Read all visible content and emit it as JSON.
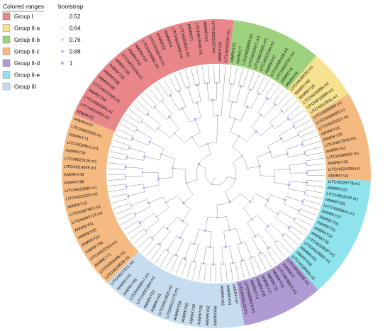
{
  "legend": {
    "colored_title": "Colored ranges",
    "bootstrap_title": "bootstrap",
    "groups": [
      {
        "name": "Group I",
        "color": "#e8868a"
      },
      {
        "name": "Group II-a",
        "color": "#f7e38f"
      },
      {
        "name": "Group II-b",
        "color": "#9fd27e"
      },
      {
        "name": "Group II-c",
        "color": "#f5ba82"
      },
      {
        "name": "Group II-d",
        "color": "#b09ad3"
      },
      {
        "name": "Group II-e",
        "color": "#8fe3ec"
      },
      {
        "name": "Group III",
        "color": "#c6dcef"
      }
    ],
    "bootstrap": [
      "0.52",
      "0.64",
      "0.76",
      "0.88",
      "1"
    ]
  },
  "colors": {
    "branch": "#8a8a8a",
    "node": "#b7b4ec"
  },
  "sectors": [
    {
      "group": "Group I",
      "start": 74,
      "end": 178
    },
    {
      "group": "Group II-a",
      "start": 38,
      "end": 74
    },
    {
      "group": "Group II-b",
      "start": 0,
      "end": 38
    },
    {
      "group": "Group II-c",
      "start": -51,
      "end": 0
    },
    {
      "group": "Group II-c",
      "start": 106,
      "end": 178
    },
    {
      "group": "Group II-e",
      "start": -120,
      "end": -51
    },
    {
      "group": "Group II-d",
      "start": -155,
      "end": -120
    },
    {
      "group": "Group III",
      "start": 165,
      "end": 205
    },
    {
      "group": "Group III",
      "start": -155,
      "end": -165
    }
  ],
  "leaves": [
    {
      "label": "AtWRKY72",
      "group": "Group II-b"
    },
    {
      "label": "AtWRKY7",
      "group": "Group II-b"
    },
    {
      "label": "LITCHI028863.m1",
      "group": "Group II-b"
    },
    {
      "label": "LITCHI019971.m1",
      "group": "Group II-b"
    },
    {
      "label": "LITCHI023601.m1",
      "group": "Group II-b"
    },
    {
      "label": "LITCHI012184.m1",
      "group": "Group II-b"
    },
    {
      "label": "AtWRKY47",
      "group": "Group II-b"
    },
    {
      "label": "LITCHI005126.m1",
      "group": "Group II-b"
    },
    {
      "label": "LITCHI010787.m1",
      "group": "Group II-b"
    },
    {
      "label": "AtWRKY6",
      "group": "Group II-b"
    },
    {
      "label": "AtWRKY9",
      "group": "Group II-b"
    },
    {
      "label": "LITCHI030032.m1",
      "group": "Group II-a"
    },
    {
      "label": "AtWRKY40",
      "group": "Group II-a"
    },
    {
      "label": "AtWRKY18",
      "group": "Group II-a"
    },
    {
      "label": "LITCHI016996.m1",
      "group": "Group II-a"
    },
    {
      "label": "LITCHI016984.m1",
      "group": "Group II-a"
    },
    {
      "label": "LITCHI012831.m1",
      "group": "Group II-a"
    },
    {
      "label": "LITCHI008260.m1",
      "group": "Group II-c"
    },
    {
      "label": "LITCHI008683.m1",
      "group": "Group II-c"
    },
    {
      "label": "LITCHI025327.m1",
      "group": "Group II-c"
    },
    {
      "label": "AtWRKY31",
      "group": "Group II-c"
    },
    {
      "label": "AtWRKY29",
      "group": "Group II-c"
    },
    {
      "label": "LITCHI012542.m1",
      "group": "Group II-c"
    },
    {
      "label": "AtWRKY61",
      "group": "Group II-c"
    },
    {
      "label": "LITCHI009692.m1",
      "group": "Group II-c"
    },
    {
      "label": "AtWRKY36",
      "group": "Group II-c"
    },
    {
      "label": "LITCHI024306.m1",
      "group": "Group II-c"
    },
    {
      "label": "AtWRKY10",
      "group": "Group II-c"
    },
    {
      "label": "LITCHI025778.m1",
      "group": "Group II-e"
    },
    {
      "label": "AtWRKY22",
      "group": "Group II-e"
    },
    {
      "label": "LITCHI022030.m1",
      "group": "Group II-e"
    },
    {
      "label": "AtWRKY29",
      "group": "Group II-e"
    },
    {
      "label": "LITCHI009444.m1",
      "group": "Group II-e"
    },
    {
      "label": "AtWRKY27",
      "group": "Group II-e"
    },
    {
      "label": "AtWRKY16",
      "group": "Group II-e"
    },
    {
      "label": "AtWRKY52",
      "group": "Group II-e"
    },
    {
      "label": "AtWRKY14",
      "group": "Group II-e"
    },
    {
      "label": "AtWRKY35",
      "group": "Group II-e"
    },
    {
      "label": "LITCHI028587.m1",
      "group": "Group II-e"
    },
    {
      "label": "LITCHI028982.m1",
      "group": "Group II-e"
    },
    {
      "label": "AtWRKY65",
      "group": "Group II-e"
    },
    {
      "label": "AtWRKY69",
      "group": "Group II-e"
    },
    {
      "label": "LITCHI025566.m1",
      "group": "Group II-e"
    },
    {
      "label": "LITCHI010930.m1",
      "group": "Group II-d"
    },
    {
      "label": "AtWRKY7",
      "group": "Group II-d"
    },
    {
      "label": "LITCHI006931.m1",
      "group": "Group II-d"
    },
    {
      "label": "AtWRKY15",
      "group": "Group II-d"
    },
    {
      "label": "AtWRKY11",
      "group": "Group II-d"
    },
    {
      "label": "AtWRKY17",
      "group": "Group II-d"
    },
    {
      "label": "AtWRKY39",
      "group": "Group II-d"
    },
    {
      "label": "AtWRKY74",
      "group": "Group II-d"
    },
    {
      "label": "LITCHI003618.m1",
      "group": "Group II-d"
    },
    {
      "label": "LITCHI006110.m1",
      "group": "Group II-d"
    },
    {
      "label": "AtWRKY67",
      "group": "Group III"
    },
    {
      "label": "AtWRKY64",
      "group": "Group III"
    },
    {
      "label": "AtWRKY63",
      "group": "Group III"
    },
    {
      "label": "AtWRKY66",
      "group": "Group III"
    },
    {
      "label": "AtWRKY62",
      "group": "Group III"
    },
    {
      "label": "AtWRKY38",
      "group": "Group III"
    },
    {
      "label": "AtWRKY30",
      "group": "Group III"
    },
    {
      "label": "AtWRKY55",
      "group": "Group III"
    },
    {
      "label": "AtWRKY54",
      "group": "Group III"
    },
    {
      "label": "LITCHI012275.m1",
      "group": "Group III"
    },
    {
      "label": "LITCHI019620.m1",
      "group": "Group III"
    },
    {
      "label": "AtWRKY41",
      "group": "Group III"
    },
    {
      "label": "AtWRKY53",
      "group": "Group III"
    },
    {
      "label": "LITCHI021964.m1",
      "group": "Group III"
    },
    {
      "label": "LITCHI009517.m1",
      "group": "Group III"
    },
    {
      "label": "AtWRKY46",
      "group": "Group III"
    },
    {
      "label": "AtWRKY70",
      "group": "Group III"
    },
    {
      "label": "LITCHI027571.m1",
      "group": "Group III"
    },
    {
      "label": "LITCHI026628.m1",
      "group": "Group II-c"
    },
    {
      "label": "LITCHI009485.m1",
      "group": "Group II-c"
    },
    {
      "label": "AtWRKY71",
      "group": "Group II-c"
    },
    {
      "label": "LITCHI025510.m1",
      "group": "Group II-c"
    },
    {
      "label": "AtWRKY56",
      "group": "Group II-c"
    },
    {
      "label": "AtWRKY24",
      "group": "Group II-c"
    },
    {
      "label": "AtWRKY50",
      "group": "Group II-c"
    },
    {
      "label": "AtWRKY51",
      "group": "Group II-c"
    },
    {
      "label": "LITCHI003713.m1",
      "group": "Group II-c"
    },
    {
      "label": "LITCHI007881.m1",
      "group": "Group II-c"
    },
    {
      "label": "AtWRKY12",
      "group": "Group II-c"
    },
    {
      "label": "LITCHI025323.m1",
      "group": "Group II-c"
    },
    {
      "label": "LITCHI020589.m1",
      "group": "Group II-c"
    },
    {
      "label": "AtWRKY68",
      "group": "Group II-c"
    },
    {
      "label": "AtWRKY43",
      "group": "Group II-c"
    },
    {
      "label": "LITCHI014349.m1",
      "group": "Group II-c"
    },
    {
      "label": "LITCHI020126.m1",
      "group": "Group II-c"
    },
    {
      "label": "AtWRKY28",
      "group": "Group II-c"
    },
    {
      "label": "LITCHI028611.m1",
      "group": "Group II-c"
    },
    {
      "label": "AtWRKY71",
      "group": "Group II-c"
    },
    {
      "label": "LITCHI005283.m1",
      "group": "Group II-c"
    },
    {
      "label": "AtWRKY57",
      "group": "Group II-c"
    },
    {
      "label": "AtWRKY2",
      "group": "Group I"
    },
    {
      "label": "LITCHI013493.m1",
      "group": "Group I"
    },
    {
      "label": "LITCHI002566.m1",
      "group": "Group I"
    },
    {
      "label": "AtWRKY34",
      "group": "Group I"
    },
    {
      "label": "LITCHI013794.m1",
      "group": "Group I"
    },
    {
      "label": "AtWRKY20",
      "group": "Group I"
    },
    {
      "label": "AtWRKY58",
      "group": "Group I"
    },
    {
      "label": "AtWRKY25",
      "group": "Group I"
    },
    {
      "label": "AtWRKY26",
      "group": "Group I"
    },
    {
      "label": "LITCHI031153.m1",
      "group": "Group I"
    },
    {
      "label": "AtWRKY33",
      "group": "Group I"
    },
    {
      "label": "AtWRKY19",
      "group": "Group I"
    },
    {
      "label": "LITCHI018062.m1",
      "group": "Group I"
    },
    {
      "label": "LITCHI009243.m1",
      "group": "Group I"
    },
    {
      "label": "AtWRKY3",
      "group": "Group I"
    },
    {
      "label": "AtWRKY4",
      "group": "Group I"
    },
    {
      "label": "LITCHI019498.m1",
      "group": "Group I"
    },
    {
      "label": "LITCHI016521.m1",
      "group": "Group I"
    },
    {
      "label": "AtWRKY1",
      "group": "Group I"
    },
    {
      "label": "LITCHI018556.m1",
      "group": "Group I"
    },
    {
      "label": "AtWRKY44",
      "group": "Group I"
    },
    {
      "label": "LITCHI021627.m1",
      "group": "Group I"
    },
    {
      "label": "AtWRKY32",
      "group": "Group I"
    },
    {
      "label": "LITCHI025154.m1",
      "group": "Group I"
    }
  ]
}
